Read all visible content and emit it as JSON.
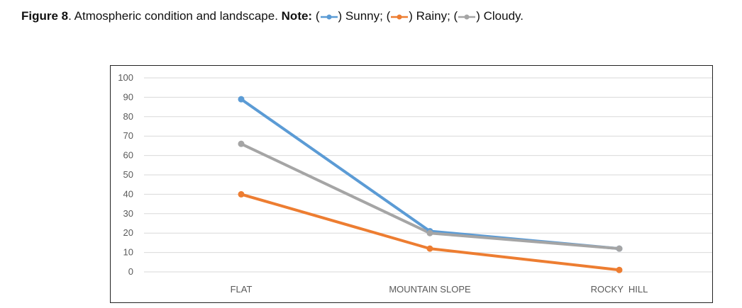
{
  "caption": {
    "label": "Figure 8",
    "title": ". Atmospheric condition and landscape. ",
    "note_label": "Note:",
    "legend": [
      {
        "open": " (",
        "close": ") Sunny;",
        "color": "#5b9bd5"
      },
      {
        "open": " (",
        "close": ") Rainy;",
        "color": "#ed7d31"
      },
      {
        "open": " (",
        "close": ") Cloudy.",
        "color": "#a5a5a5"
      }
    ]
  },
  "chart_data": {
    "type": "line",
    "categories": [
      "FLAT",
      "MOUNTAIN SLOPE",
      "ROCKY  HILL"
    ],
    "series": [
      {
        "name": "Sunny",
        "color": "#5b9bd5",
        "values": [
          89,
          21,
          12
        ]
      },
      {
        "name": "Rainy",
        "color": "#ed7d31",
        "values": [
          40,
          12,
          1
        ]
      },
      {
        "name": "Cloudy",
        "color": "#a5a5a5",
        "values": [
          66,
          20,
          12
        ]
      }
    ],
    "yticks": [
      "0",
      "10",
      "20",
      "30",
      "40",
      "50",
      "60",
      "70",
      "80",
      "90",
      "100"
    ],
    "ylim": [
      0,
      100
    ],
    "grid": true
  }
}
